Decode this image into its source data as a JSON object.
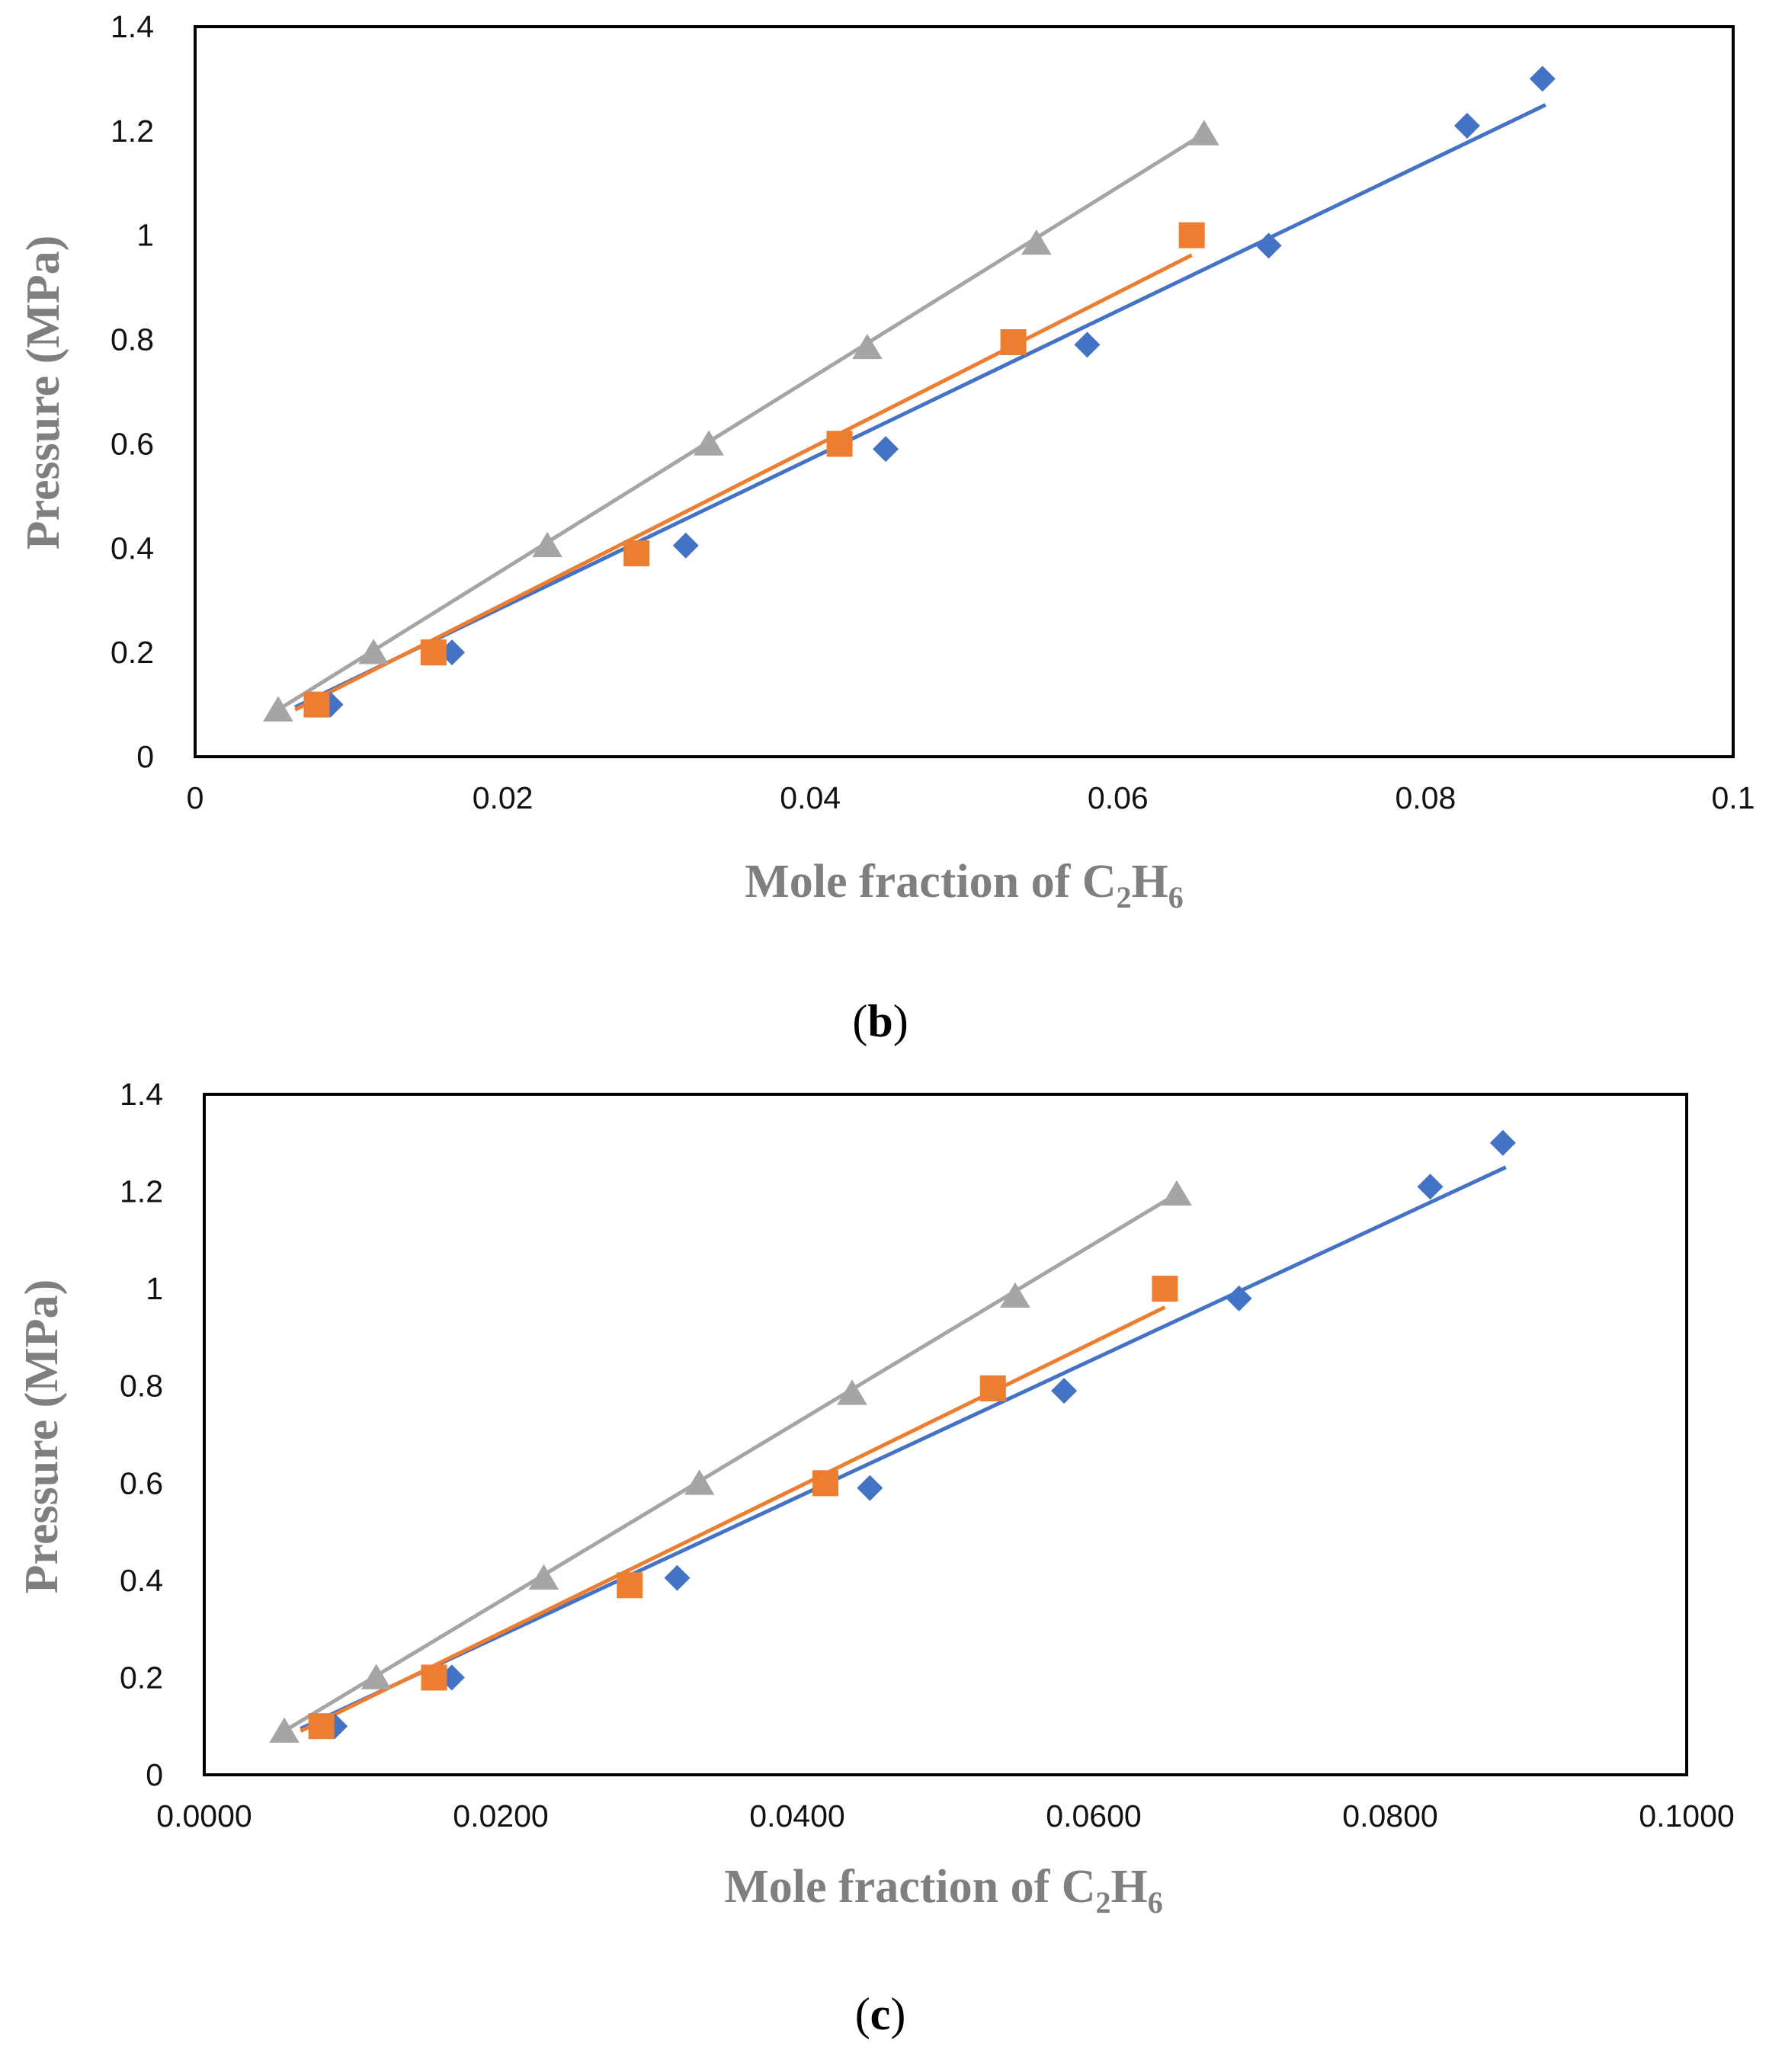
{
  "chart_data": [
    {
      "type": "scatter",
      "panel_label": "b",
      "xlabel": {
        "main": "Mole fraction  of C",
        "sub1": "2",
        "mid": "H",
        "sub2": "6"
      },
      "ylabel": "Pressure (MPa)",
      "xlim": [
        0,
        0.1
      ],
      "ylim": [
        0,
        1.4
      ],
      "xticks": [
        0,
        0.02,
        0.04,
        0.06,
        0.08,
        0.1
      ],
      "xtick_labels": [
        "0",
        "0.02",
        "0.04",
        "0.06",
        "0.08",
        "0.1"
      ],
      "yticks": [
        0,
        0.2,
        0.4,
        0.6,
        0.8,
        1,
        1.2,
        1.4
      ],
      "ytick_labels": [
        "0",
        "0.2",
        "0.4",
        "0.6",
        "0.8",
        "1",
        "1.2",
        "1.4"
      ],
      "grid": false,
      "series": [
        {
          "name": "series-blue",
          "marker": "diamond",
          "color": "#4472C4",
          "x": [
            0.0088,
            0.0167,
            0.0319,
            0.0449,
            0.058,
            0.0698,
            0.0827,
            0.0876
          ],
          "y": [
            0.1,
            0.2,
            0.405,
            0.59,
            0.79,
            0.98,
            1.21,
            1.3
          ],
          "trend": [
            [
              0.0065,
              0.095
            ],
            [
              0.0878,
              1.25
            ]
          ]
        },
        {
          "name": "series-orange",
          "marker": "square",
          "color": "#ED7D31",
          "x": [
            0.0079,
            0.0155,
            0.0287,
            0.0419,
            0.0532,
            0.0648
          ],
          "y": [
            0.1,
            0.2,
            0.39,
            0.6,
            0.795,
            1.0
          ],
          "trend": [
            [
              0.0065,
              0.09
            ],
            [
              0.0648,
              0.962
            ]
          ]
        },
        {
          "name": "series-gray",
          "marker": "triangle",
          "color": "#A5A5A5",
          "x": [
            0.0054,
            0.0116,
            0.0229,
            0.0334,
            0.0437,
            0.0547,
            0.0656
          ],
          "y": [
            0.09,
            0.2,
            0.405,
            0.6,
            0.785,
            0.985,
            1.195
          ],
          "trend": [
            [
              0.0054,
              0.09
            ],
            [
              0.0656,
              1.195
            ]
          ]
        }
      ]
    },
    {
      "type": "scatter",
      "panel_label": "c",
      "xlabel": {
        "main": "Mole fraction  of C",
        "sub1": "2",
        "mid": "H",
        "sub2": "6"
      },
      "ylabel": "Pressure (MPa)",
      "xlim": [
        0,
        0.1
      ],
      "ylim": [
        0,
        1.4
      ],
      "xticks": [
        0,
        0.02,
        0.04,
        0.06,
        0.08,
        0.1
      ],
      "xtick_labels": [
        "0.0000",
        "0.0200",
        "0.0400",
        "0.0600",
        "0.0800",
        "0.1000"
      ],
      "yticks": [
        0,
        0.2,
        0.4,
        0.6,
        0.8,
        1,
        1.2,
        1.4
      ],
      "ytick_labels": [
        "0",
        "0.2",
        "0.4",
        "0.6",
        "0.8",
        "1",
        "1.2",
        "1.4"
      ],
      "grid": false,
      "series": [
        {
          "name": "series-blue",
          "marker": "diamond",
          "color": "#4472C4",
          "x": [
            0.0088,
            0.0167,
            0.0319,
            0.0449,
            0.058,
            0.0698,
            0.0827,
            0.0876
          ],
          "y": [
            0.1,
            0.2,
            0.405,
            0.59,
            0.79,
            0.98,
            1.21,
            1.3
          ],
          "trend": [
            [
              0.0065,
              0.095
            ],
            [
              0.0878,
              1.25
            ]
          ]
        },
        {
          "name": "series-orange",
          "marker": "square",
          "color": "#ED7D31",
          "x": [
            0.0079,
            0.0155,
            0.0287,
            0.0419,
            0.0532,
            0.0648
          ],
          "y": [
            0.1,
            0.2,
            0.39,
            0.6,
            0.795,
            1.0
          ],
          "trend": [
            [
              0.0065,
              0.09
            ],
            [
              0.0648,
              0.962
            ]
          ]
        },
        {
          "name": "series-gray",
          "marker": "triangle",
          "color": "#A5A5A5",
          "x": [
            0.0054,
            0.0116,
            0.0229,
            0.0334,
            0.0437,
            0.0547,
            0.0656
          ],
          "y": [
            0.09,
            0.2,
            0.405,
            0.6,
            0.785,
            0.985,
            1.195
          ],
          "trend": [
            [
              0.0054,
              0.09
            ],
            [
              0.0656,
              1.195
            ]
          ]
        }
      ]
    }
  ]
}
